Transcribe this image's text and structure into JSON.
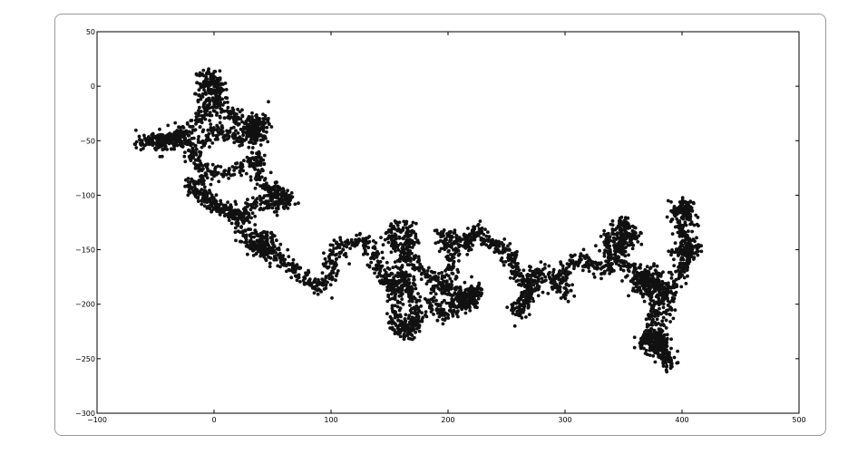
{
  "chart_data": {
    "type": "scatter",
    "title": "",
    "xlabel": "",
    "ylabel": "",
    "xlim": [
      -100,
      500
    ],
    "ylim": [
      -300,
      50
    ],
    "xticks": [
      -100,
      0,
      100,
      200,
      300,
      400,
      500
    ],
    "yticks": [
      -300,
      -250,
      -200,
      -150,
      -100,
      -50,
      0,
      50
    ],
    "xtick_labels": [
      "−100",
      "0",
      "100",
      "200",
      "300",
      "400",
      "500"
    ],
    "ytick_labels": [
      "−300",
      "−250",
      "−200",
      "−150",
      "−100",
      "−50",
      "0",
      "50"
    ],
    "grid": false,
    "marker_color": "#111111",
    "series": [
      {
        "path": [
          [
            -65,
            -55
          ],
          [
            -55,
            -48
          ],
          [
            -45,
            -50
          ],
          [
            -35,
            -48
          ],
          [
            -25,
            -55
          ],
          [
            -30,
            -45
          ],
          [
            -20,
            -40
          ],
          [
            -12,
            -30
          ],
          [
            -5,
            -20
          ],
          [
            -10,
            -5
          ],
          [
            -8,
            10
          ],
          [
            0,
            8
          ],
          [
            5,
            0
          ],
          [
            0,
            -15
          ],
          [
            10,
            -25
          ],
          [
            20,
            -30
          ],
          [
            30,
            -35
          ],
          [
            40,
            -30
          ],
          [
            35,
            -45
          ],
          [
            25,
            -50
          ],
          [
            15,
            -45
          ],
          [
            5,
            -40
          ],
          [
            -5,
            -45
          ],
          [
            -15,
            -55
          ],
          [
            -20,
            -65
          ],
          [
            -10,
            -75
          ],
          [
            0,
            -80
          ],
          [
            15,
            -78
          ],
          [
            30,
            -70
          ],
          [
            40,
            -65
          ],
          [
            35,
            -80
          ],
          [
            45,
            -90
          ],
          [
            55,
            -100
          ],
          [
            65,
            -105
          ],
          [
            55,
            -110
          ],
          [
            40,
            -105
          ],
          [
            30,
            -115
          ],
          [
            20,
            -120
          ],
          [
            10,
            -115
          ],
          [
            0,
            -110
          ],
          [
            -10,
            -105
          ],
          [
            -20,
            -95
          ],
          [
            -15,
            -85
          ],
          [
            -5,
            -100
          ],
          [
            5,
            -110
          ],
          [
            20,
            -115
          ],
          [
            25,
            -130
          ],
          [
            30,
            -145
          ],
          [
            40,
            -150
          ],
          [
            50,
            -155
          ],
          [
            60,
            -160
          ],
          [
            70,
            -170
          ],
          [
            80,
            -180
          ],
          [
            90,
            -185
          ],
          [
            100,
            -175
          ],
          [
            100,
            -160
          ],
          [
            105,
            -150
          ],
          [
            115,
            -145
          ],
          [
            125,
            -140
          ],
          [
            135,
            -150
          ],
          [
            140,
            -165
          ],
          [
            145,
            -175
          ],
          [
            150,
            -185
          ],
          [
            155,
            -200
          ],
          [
            155,
            -215
          ],
          [
            160,
            -225
          ],
          [
            170,
            -220
          ],
          [
            175,
            -210
          ],
          [
            170,
            -195
          ],
          [
            165,
            -180
          ],
          [
            160,
            -165
          ],
          [
            165,
            -150
          ],
          [
            170,
            -140
          ],
          [
            165,
            -130
          ],
          [
            155,
            -130
          ],
          [
            150,
            -140
          ],
          [
            160,
            -150
          ],
          [
            170,
            -160
          ],
          [
            180,
            -170
          ],
          [
            190,
            -180
          ],
          [
            200,
            -185
          ],
          [
            210,
            -190
          ],
          [
            220,
            -195
          ],
          [
            225,
            -185
          ],
          [
            215,
            -195
          ],
          [
            205,
            -205
          ],
          [
            195,
            -210
          ],
          [
            185,
            -205
          ],
          [
            190,
            -190
          ],
          [
            200,
            -175
          ],
          [
            205,
            -160
          ],
          [
            200,
            -145
          ],
          [
            195,
            -137
          ],
          [
            205,
            -140
          ],
          [
            215,
            -145
          ],
          [
            220,
            -140
          ],
          [
            225,
            -130
          ],
          [
            230,
            -140
          ],
          [
            240,
            -145
          ],
          [
            250,
            -150
          ],
          [
            255,
            -160
          ],
          [
            260,
            -170
          ],
          [
            265,
            -180
          ],
          [
            270,
            -185
          ],
          [
            265,
            -200
          ],
          [
            260,
            -210
          ],
          [
            265,
            -195
          ],
          [
            275,
            -185
          ],
          [
            270,
            -175
          ],
          [
            280,
            -170
          ],
          [
            290,
            -180
          ],
          [
            300,
            -190
          ],
          [
            295,
            -175
          ],
          [
            305,
            -165
          ],
          [
            315,
            -160
          ],
          [
            325,
            -165
          ],
          [
            335,
            -170
          ],
          [
            340,
            -160
          ],
          [
            345,
            -150
          ],
          [
            350,
            -140
          ],
          [
            355,
            -130
          ],
          [
            350,
            -125
          ],
          [
            340,
            -135
          ],
          [
            335,
            -145
          ],
          [
            345,
            -155
          ],
          [
            355,
            -165
          ],
          [
            365,
            -175
          ],
          [
            375,
            -180
          ],
          [
            385,
            -185
          ],
          [
            380,
            -195
          ],
          [
            375,
            -210
          ],
          [
            372,
            -225
          ],
          [
            368,
            -235
          ],
          [
            378,
            -240
          ],
          [
            385,
            -250
          ],
          [
            390,
            -255
          ],
          [
            385,
            -240
          ],
          [
            380,
            -225
          ],
          [
            385,
            -205
          ],
          [
            390,
            -190
          ],
          [
            395,
            -175
          ],
          [
            400,
            -165
          ],
          [
            405,
            -155
          ],
          [
            410,
            -150
          ],
          [
            405,
            -140
          ],
          [
            400,
            -130
          ],
          [
            395,
            -120
          ],
          [
            400,
            -110
          ],
          [
            405,
            -115
          ],
          [
            408,
            -125
          ]
        ],
        "seed": 7,
        "points_per_segment": 26,
        "jitter": 3.6,
        "extra_clusters": [
          {
            "cx": -42,
            "cy": -50,
            "r": 10,
            "n": 70
          },
          {
            "cx": 35,
            "cy": -40,
            "r": 10,
            "n": 120
          },
          {
            "cx": 0,
            "cy": 0,
            "r": 8,
            "n": 50
          },
          {
            "cx": 50,
            "cy": -100,
            "r": 10,
            "n": 70
          },
          {
            "cx": 42,
            "cy": -145,
            "r": 10,
            "n": 120
          },
          {
            "cx": 165,
            "cy": -222,
            "r": 8,
            "n": 60
          },
          {
            "cx": 160,
            "cy": -180,
            "r": 10,
            "n": 80
          },
          {
            "cx": 215,
            "cy": -195,
            "r": 10,
            "n": 90
          },
          {
            "cx": 370,
            "cy": -180,
            "r": 12,
            "n": 180
          },
          {
            "cx": 378,
            "cy": -235,
            "r": 10,
            "n": 110
          },
          {
            "cx": 355,
            "cy": -140,
            "r": 8,
            "n": 50
          },
          {
            "cx": 400,
            "cy": -150,
            "r": 8,
            "n": 60
          },
          {
            "cx": 400,
            "cy": -112,
            "r": 6,
            "n": 40
          }
        ]
      }
    ]
  }
}
